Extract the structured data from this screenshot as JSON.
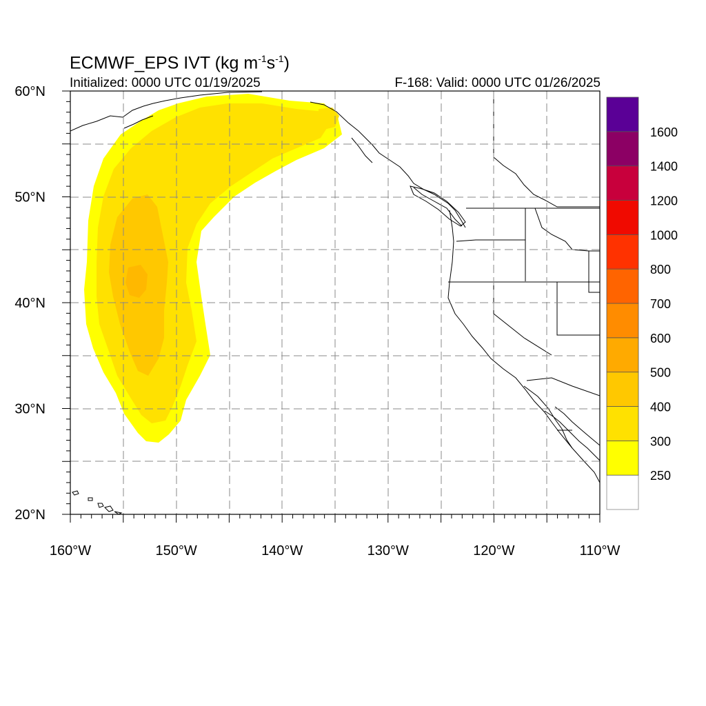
{
  "header": {
    "title_main": "ECMWF_EPS IVT (kg m",
    "title_exp1": "-1",
    "title_mid": "s",
    "title_exp2": "-1",
    "title_end": ")",
    "initialized": "Initialized: 0000 UTC 01/19/2025",
    "valid": "F-168: Valid: 0000 UTC 01/26/2025"
  },
  "axes": {
    "lat_labels": [
      "60°N",
      "50°N",
      "40°N",
      "30°N",
      "20°N"
    ],
    "lat_values": [
      60,
      50,
      40,
      30,
      20
    ],
    "lon_labels": [
      "160°W",
      "150°W",
      "140°W",
      "130°W",
      "120°W",
      "110°W"
    ],
    "lon_values": [
      -160,
      -150,
      -140,
      -130,
      -120,
      -110
    ],
    "lon_range": [
      -160,
      -110
    ],
    "lat_range": [
      20,
      60
    ],
    "grid": "dashed every 5 degrees"
  },
  "colorbar": {
    "labels": [
      "250",
      "300",
      "400",
      "500",
      "600",
      "700",
      "800",
      "1000",
      "1200",
      "1400",
      "1600"
    ],
    "colors": [
      "#ffffff",
      "#ffff00",
      "#ffe100",
      "#ffc800",
      "#ffaa00",
      "#ff8c00",
      "#ff6400",
      "#ff3200",
      "#f00a00",
      "#c8003c",
      "#8c0064",
      "#5a0096"
    ]
  },
  "field": {
    "description_levels": [
      "250",
      "300",
      "400"
    ],
    "colors": {
      "level_250": "#ffff00",
      "level_300": "#ffe100",
      "level_400": "#ffc800"
    }
  }
}
